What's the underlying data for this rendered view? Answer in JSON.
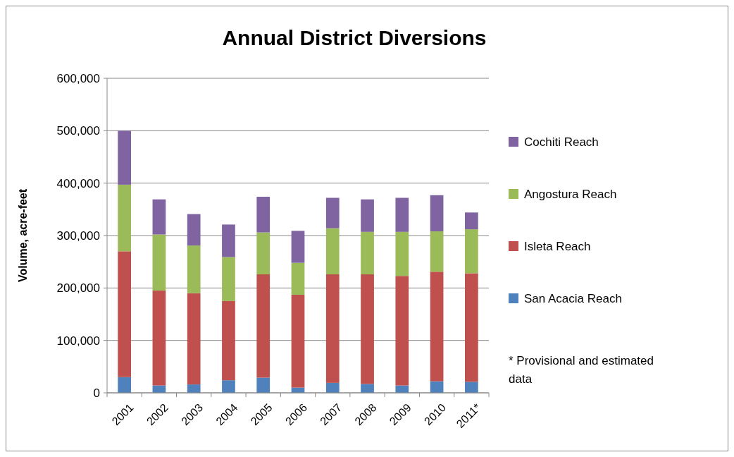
{
  "chart_data": {
    "type": "bar",
    "title": "Annual District Diversions",
    "ylabel": "Volume, acre-feet",
    "categories": [
      "2001",
      "2002",
      "2003",
      "2004",
      "2005",
      "2006",
      "2007",
      "2008",
      "2009",
      "2010",
      "2011*"
    ],
    "stacked": true,
    "ylim": [
      0,
      600000
    ],
    "yticks": [
      {
        "value": 0,
        "label": "0"
      },
      {
        "value": 100000,
        "label": "100,000"
      },
      {
        "value": 200000,
        "label": "200,000"
      },
      {
        "value": 300000,
        "label": "300,000"
      },
      {
        "value": 400000,
        "label": "400,000"
      },
      {
        "value": 500000,
        "label": "500,000"
      },
      {
        "value": 600000,
        "label": "600,000"
      }
    ],
    "grid": "y",
    "legend": "right",
    "series": [
      {
        "name": "San Acacia Reach",
        "color": "#4f81bd",
        "values": [
          30000,
          14000,
          16000,
          24000,
          29000,
          10000,
          19000,
          17000,
          14000,
          22000,
          21000
        ]
      },
      {
        "name": "Isleta Reach",
        "color": "#c0504d",
        "values": [
          240000,
          181000,
          174000,
          151000,
          197000,
          177000,
          207000,
          209000,
          209000,
          209000,
          207000
        ]
      },
      {
        "name": "Angostura Reach",
        "color": "#9bbb59",
        "values": [
          127000,
          107000,
          91000,
          84000,
          80000,
          61000,
          88000,
          81000,
          84000,
          77000,
          84000
        ]
      },
      {
        "name": "Cochiti Reach",
        "color": "#8064a2",
        "values": [
          103000,
          67000,
          60000,
          62000,
          68000,
          61000,
          58000,
          62000,
          65000,
          69000,
          32000
        ]
      }
    ],
    "annotations": [
      "* Provisional and estimated data"
    ]
  }
}
